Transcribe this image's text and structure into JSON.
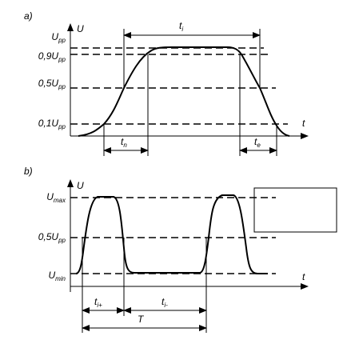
{
  "panel_a": {
    "label": "a)",
    "axis_y": "U",
    "axis_x": "t",
    "levels": [
      {
        "main": "U",
        "sub": "pp"
      },
      {
        "main": "0,9U",
        "sub": "pp"
      },
      {
        "main": "0,5U",
        "sub": "pp"
      },
      {
        "main": "0,1U",
        "sub": "pp"
      }
    ],
    "intervals": [
      {
        "main": "t",
        "sub": "i"
      },
      {
        "main": "t",
        "sub": "n"
      },
      {
        "main": "t",
        "sub": "e"
      }
    ]
  },
  "panel_b": {
    "label": "b)",
    "axis_y": "U",
    "axis_x": "t",
    "levels": [
      {
        "main": "U",
        "sub": "max"
      },
      {
        "main": "0,5U",
        "sub": "pp"
      },
      {
        "main": "U",
        "sub": "min"
      }
    ],
    "intervals": [
      {
        "main": "t",
        "sub": "i+"
      },
      {
        "main": "t",
        "sub": "i-"
      },
      {
        "main": "T"
      }
    ]
  }
}
